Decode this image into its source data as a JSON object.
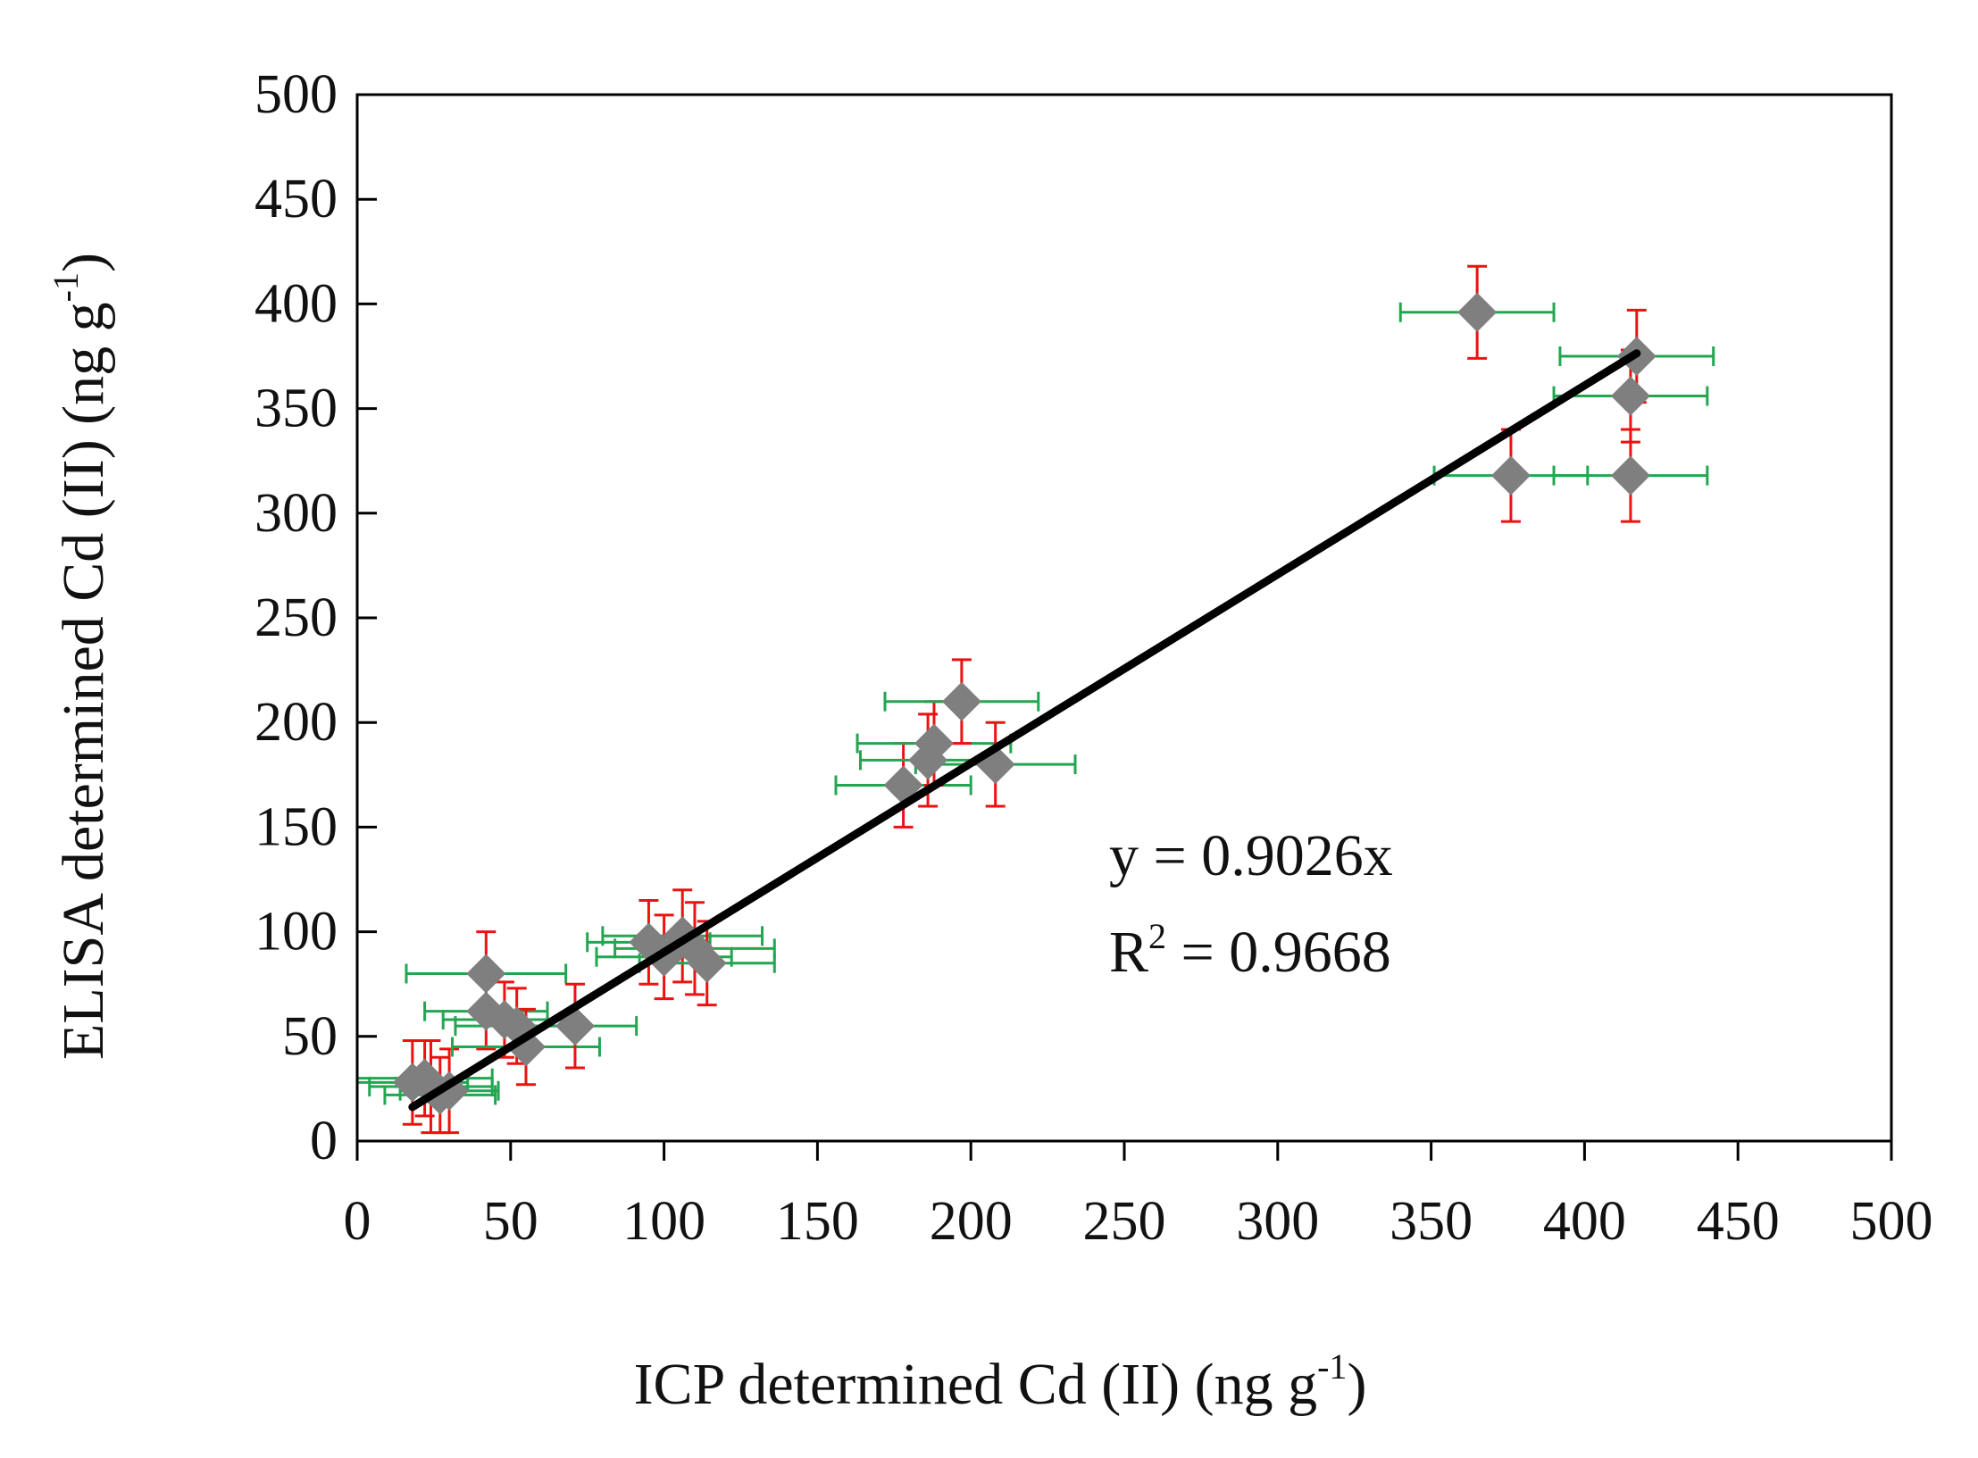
{
  "chart_data": {
    "type": "scatter",
    "title": "",
    "xlabel": "ICP determined Cd (II) (ng g",
    "xlabel_sup": "-1",
    "xlabel_tail": ")",
    "ylabel": "ELISA determined Cd (II) (ng g",
    "ylabel_sup": "-1",
    "ylabel_tail": ")",
    "xlim": [
      0,
      500
    ],
    "ylim": [
      0,
      500
    ],
    "x_ticks": [
      "0",
      "50",
      "100",
      "150",
      "200",
      "250",
      "300",
      "350",
      "400",
      "450",
      "500"
    ],
    "y_ticks": [
      "0",
      "50",
      "100",
      "150",
      "200",
      "250",
      "300",
      "350",
      "400",
      "450",
      "500"
    ],
    "grid": false,
    "series": [
      {
        "name": "samples",
        "marker": "diamond",
        "marker_color": "#7f7f7f",
        "x_error_color": "#22a650",
        "y_error_color": "#ee1111",
        "points": [
          {
            "x": 18,
            "y": 28,
            "xerr": 18,
            "yerr": 20
          },
          {
            "x": 22,
            "y": 30,
            "xerr": 22,
            "yerr": 18
          },
          {
            "x": 24,
            "y": 26,
            "xerr": 20,
            "yerr": 22
          },
          {
            "x": 27,
            "y": 22,
            "xerr": 18,
            "yerr": 18
          },
          {
            "x": 30,
            "y": 24,
            "xerr": 16,
            "yerr": 20
          },
          {
            "x": 42,
            "y": 80,
            "xerr": 26,
            "yerr": 20
          },
          {
            "x": 42,
            "y": 62,
            "xerr": 20,
            "yerr": 18
          },
          {
            "x": 48,
            "y": 58,
            "xerr": 20,
            "yerr": 18
          },
          {
            "x": 52,
            "y": 55,
            "xerr": 20,
            "yerr": 18
          },
          {
            "x": 55,
            "y": 45,
            "xerr": 24,
            "yerr": 18
          },
          {
            "x": 71,
            "y": 55,
            "xerr": 20,
            "yerr": 20
          },
          {
            "x": 95,
            "y": 95,
            "xerr": 20,
            "yerr": 20
          },
          {
            "x": 100,
            "y": 88,
            "xerr": 22,
            "yerr": 20
          },
          {
            "x": 106,
            "y": 98,
            "xerr": 26,
            "yerr": 22
          },
          {
            "x": 110,
            "y": 92,
            "xerr": 26,
            "yerr": 22
          },
          {
            "x": 114,
            "y": 85,
            "xerr": 22,
            "yerr": 20
          },
          {
            "x": 178,
            "y": 170,
            "xerr": 22,
            "yerr": 20
          },
          {
            "x": 186,
            "y": 182,
            "xerr": 22,
            "yerr": 22
          },
          {
            "x": 188,
            "y": 190,
            "xerr": 25,
            "yerr": 20
          },
          {
            "x": 197,
            "y": 210,
            "xerr": 25,
            "yerr": 20
          },
          {
            "x": 208,
            "y": 180,
            "xerr": 26,
            "yerr": 20
          },
          {
            "x": 365,
            "y": 396,
            "xerr": 25,
            "yerr": 22
          },
          {
            "x": 376,
            "y": 318,
            "xerr": 25,
            "yerr": 22
          },
          {
            "x": 415,
            "y": 318,
            "xerr": 25,
            "yerr": 22
          },
          {
            "x": 415,
            "y": 356,
            "xerr": 25,
            "yerr": 22
          },
          {
            "x": 417,
            "y": 375,
            "xerr": 25,
            "yerr": 22
          }
        ]
      }
    ],
    "trendline": {
      "slope": 0.9026,
      "x_range": [
        18,
        417
      ],
      "color": "#000000"
    },
    "annotations": {
      "equation": "y = 0.9026x",
      "r2_prefix": "R",
      "r2_sup": "2",
      "r2_value": " = 0.9668"
    }
  }
}
